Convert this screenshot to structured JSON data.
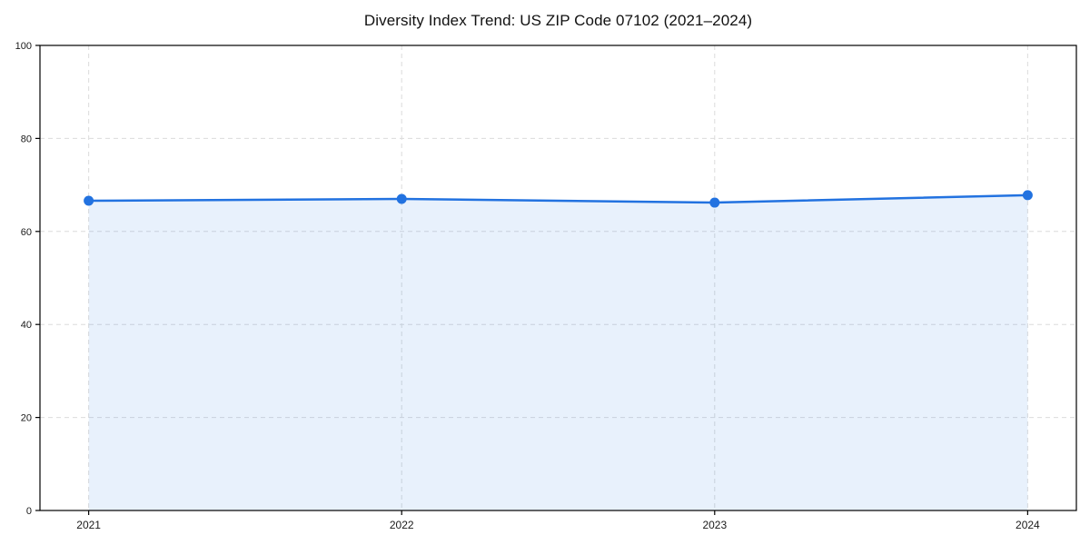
{
  "chart_data": {
    "type": "line",
    "title": "Diversity Index Trend: US ZIP Code 07102 (2021–2024)",
    "x": [
      "2021",
      "2022",
      "2023",
      "2024"
    ],
    "series": [
      {
        "name": "Diversity Index",
        "values": [
          66.6,
          67.0,
          66.2,
          67.8
        ],
        "color": "#2272e0",
        "fill_color": "#2272e0",
        "fill_opacity": 0.1,
        "marker": "circle"
      }
    ],
    "xlabel": "",
    "ylabel": "",
    "ylim": [
      0,
      100
    ],
    "yticks": [
      0,
      20,
      40,
      60,
      80,
      100
    ],
    "grid": true,
    "grid_color": "#dcdcdc",
    "grid_style": "dashed",
    "legend": false,
    "axis_color": "#000000",
    "tick_label_color": "#1a1a1a",
    "title_color": "#111111",
    "background": "#ffffff"
  }
}
